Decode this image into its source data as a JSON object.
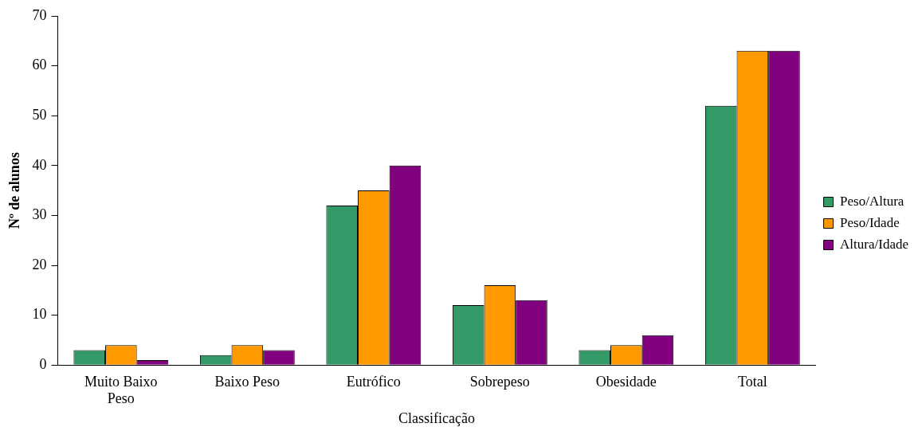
{
  "chart_data": {
    "type": "bar",
    "xlabel": "Classificação",
    "ylabel": "Nº de alunos",
    "categories": [
      "Muito Baixo Peso",
      "Baixo Peso",
      "Eutrófico",
      "Sobrepeso",
      "Obesidade",
      "Total"
    ],
    "series": [
      {
        "name": "Peso/Altura",
        "color": "#339966",
        "values": [
          3,
          2,
          32,
          12,
          3,
          52
        ]
      },
      {
        "name": "Peso/Idade",
        "color": "#ff9900",
        "values": [
          4,
          4,
          35,
          16,
          4,
          63
        ]
      },
      {
        "name": "Altura/Idade",
        "color": "#800080",
        "values": [
          1,
          3,
          40,
          13,
          6,
          63
        ]
      }
    ],
    "ylim": [
      0,
      70
    ],
    "yticks": [
      0,
      10,
      20,
      30,
      40,
      50,
      60,
      70
    ],
    "grid": false,
    "legend": "right"
  }
}
